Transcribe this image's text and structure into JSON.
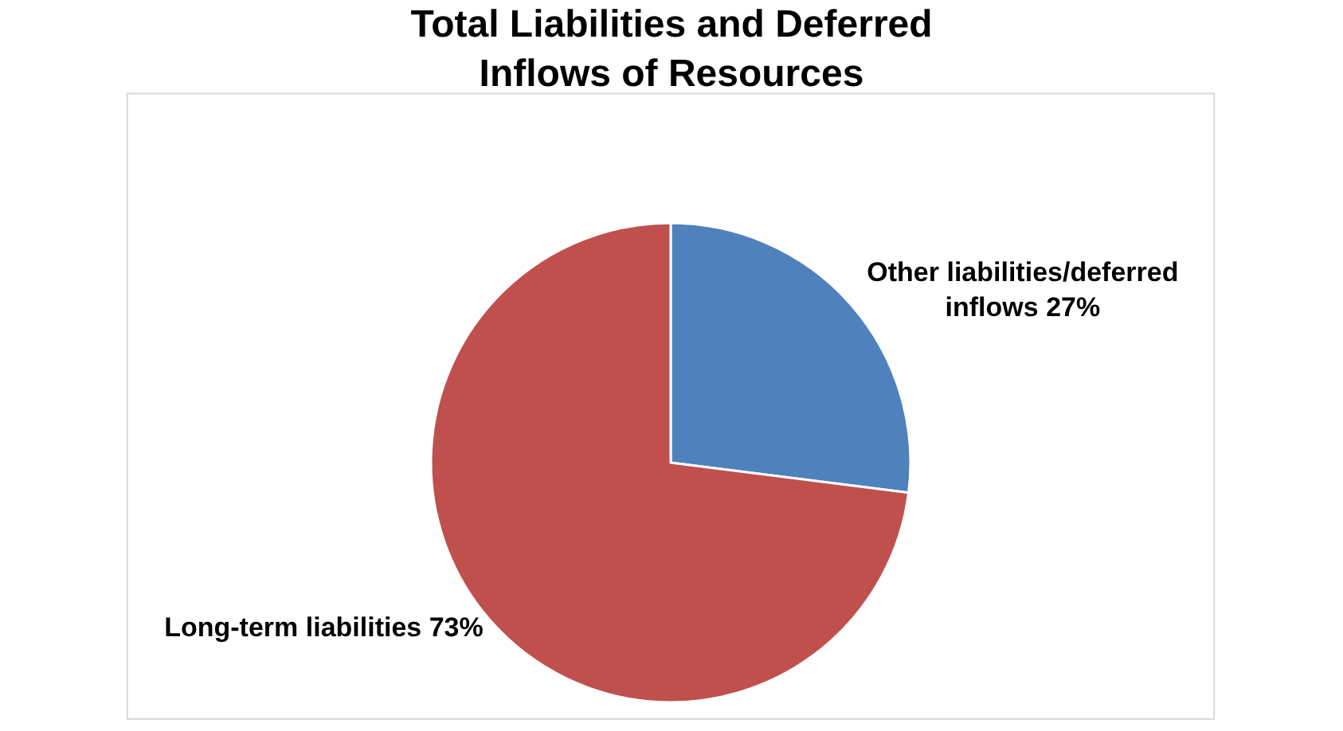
{
  "chart_data": {
    "type": "pie",
    "title": "Total Liabilities and Deferred Inflows of Resources",
    "categories": [
      "Other liabilities/deferred inflows",
      "Long-term liabilities"
    ],
    "values": [
      27,
      73
    ],
    "colors": [
      "#4f81bd",
      "#c0504d"
    ],
    "value_labels": [
      "27%",
      "73%"
    ],
    "legend": false
  }
}
